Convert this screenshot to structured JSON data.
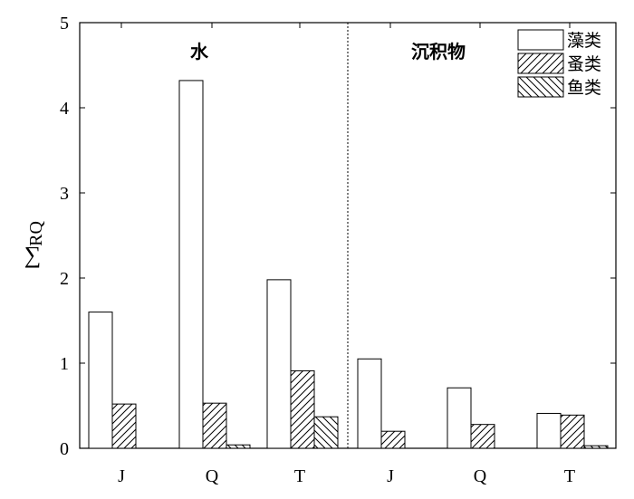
{
  "chart_data": {
    "type": "bar",
    "ylabel_symbol": "∑",
    "ylabel_sub": "RQ",
    "ylim": [
      0,
      5
    ],
    "yticks": [
      "0",
      "1",
      "2",
      "3",
      "4",
      "5"
    ],
    "panels": [
      {
        "label": "水",
        "categories": [
          "J",
          "Q",
          "T"
        ]
      },
      {
        "label": "沉积物",
        "categories": [
          "J",
          "Q",
          "T"
        ]
      }
    ],
    "series": [
      {
        "name": "藻类",
        "pattern": "none",
        "values": [
          1.6,
          4.32,
          1.98,
          1.05,
          0.71,
          0.41
        ]
      },
      {
        "name": "蚤类",
        "pattern": "forward",
        "values": [
          0.52,
          0.53,
          0.91,
          0.2,
          0.28,
          0.39
        ]
      },
      {
        "name": "鱼类",
        "pattern": "back",
        "values": [
          0.0,
          0.04,
          0.37,
          0.0,
          0.0,
          0.03
        ]
      }
    ],
    "legend_position": "top-right",
    "grid": false
  }
}
